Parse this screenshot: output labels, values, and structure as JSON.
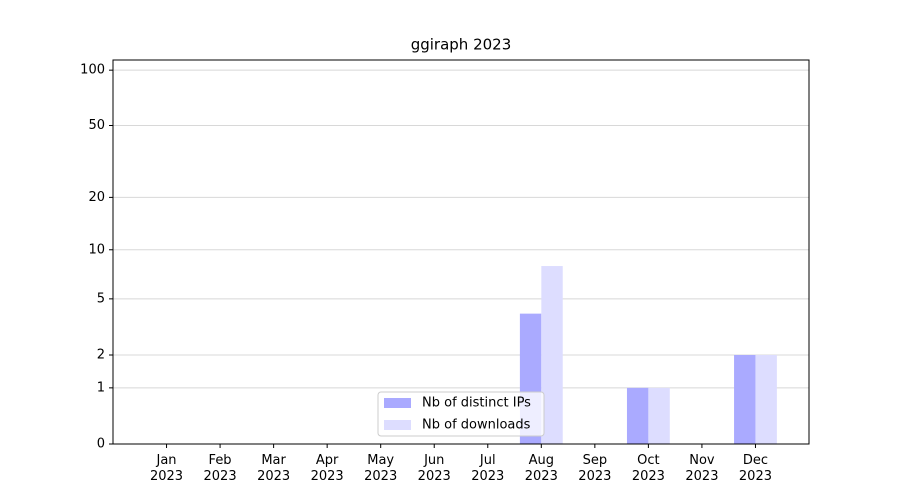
{
  "chart_data": {
    "type": "bar",
    "title": "ggiraph 2023",
    "categories": [
      "Jan\n2023",
      "Feb\n2023",
      "Mar\n2023",
      "Apr\n2023",
      "May\n2023",
      "Jun\n2023",
      "Jul\n2023",
      "Aug\n2023",
      "Sep\n2023",
      "Oct\n2023",
      "Nov\n2023",
      "Dec\n2023"
    ],
    "series": [
      {
        "name": "Nb of distinct IPs",
        "color": "#aaaaff",
        "values": [
          0,
          0,
          0,
          0,
          0,
          0,
          0,
          4,
          0,
          1,
          0,
          2
        ]
      },
      {
        "name": "Nb of downloads",
        "color": "#ddddff",
        "values": [
          0,
          0,
          0,
          0,
          0,
          0,
          0,
          8,
          0,
          1,
          0,
          2
        ]
      }
    ],
    "yscale": "log1p",
    "ylim": [
      0,
      113.5
    ],
    "yticks": [
      0,
      1,
      2,
      5,
      10,
      20,
      50,
      100
    ],
    "grid": true,
    "legend": "lower center"
  }
}
